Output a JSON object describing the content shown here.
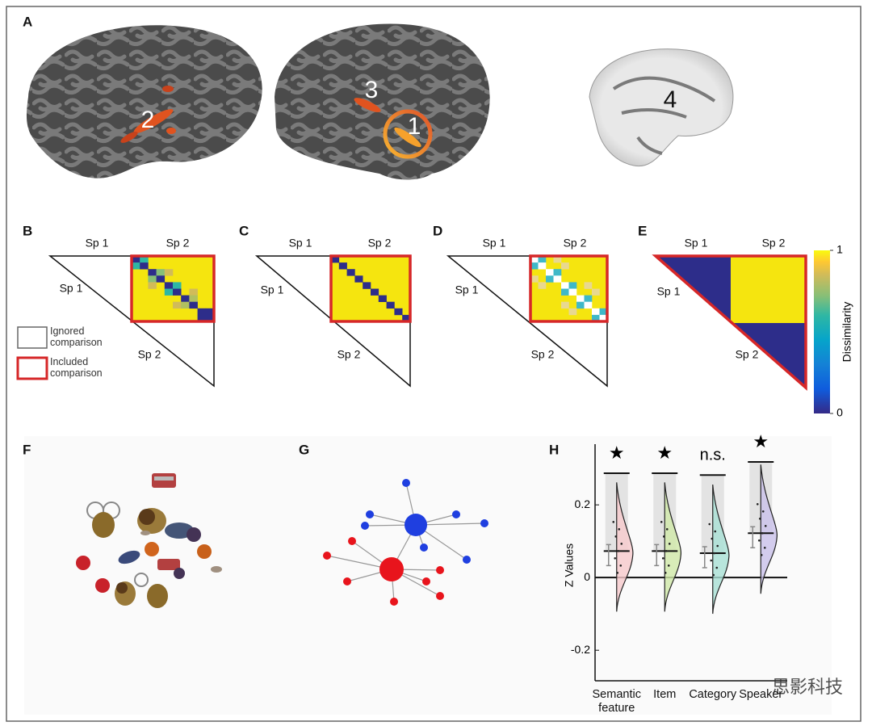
{
  "figure": {
    "panels": [
      "A",
      "B",
      "C",
      "D",
      "E",
      "F",
      "G",
      "H"
    ],
    "brain_labels": [
      "2",
      "3",
      "1",
      "4"
    ],
    "matrix_labels": [
      "Sp 1",
      "Sp 2"
    ],
    "legend": [
      "Ignored comparison",
      "Included comparison"
    ],
    "colorbar": {
      "label": "Dissimilarity",
      "ticks": [
        0,
        1
      ]
    }
  },
  "chart_data": {
    "type": "violin",
    "ylabel": "Z Values",
    "categories": [
      "Semantic feature",
      "Item",
      "Category",
      "Speaker"
    ],
    "values": [
      0.073,
      0.073,
      0.067,
      0.122
    ],
    "null_upper": [
      0.287,
      0.287,
      0.282,
      0.318
    ],
    "significance": [
      "★",
      "★",
      "n.s.",
      "★"
    ],
    "ylim": [
      -0.284,
      0.367
    ],
    "yticks": [
      -0.2,
      0,
      0.2
    ]
  },
  "watermark": "思影科技"
}
